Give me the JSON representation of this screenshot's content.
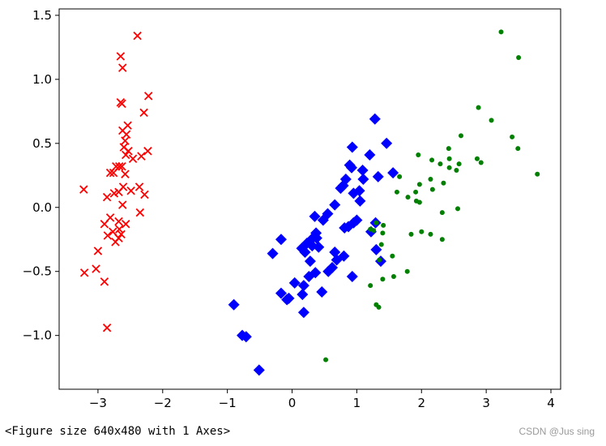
{
  "figure_caption": "<Figure size 640x480 with 1 Axes>",
  "watermark": "CSDN @Jus sing",
  "chart_data": {
    "type": "scatter",
    "xlim": [
      -3.6,
      4.15
    ],
    "ylim": [
      -1.42,
      1.55
    ],
    "x_ticks": [
      -3,
      -2,
      -1,
      0,
      1,
      2,
      3,
      4
    ],
    "x_tick_labels": [
      "−3",
      "−2",
      "−1",
      "0",
      "1",
      "2",
      "3",
      "4"
    ],
    "y_ticks": [
      -1.0,
      -0.5,
      0.0,
      0.5,
      1.0,
      1.5
    ],
    "y_tick_labels": [
      "−1.0",
      "−0.5",
      "0.0",
      "0.5",
      "1.0",
      "1.5"
    ],
    "grid": false,
    "series": [
      {
        "marker": "x",
        "color": "#ff0000",
        "points": [
          [
            -2.39,
            1.34
          ],
          [
            -2.65,
            1.18
          ],
          [
            -2.62,
            1.09
          ],
          [
            -2.65,
            0.82
          ],
          [
            -2.63,
            0.81
          ],
          [
            -2.22,
            0.87
          ],
          [
            -2.29,
            0.74
          ],
          [
            -2.54,
            0.64
          ],
          [
            -2.62,
            0.6
          ],
          [
            -2.56,
            0.57
          ],
          [
            -2.58,
            0.52
          ],
          [
            -2.6,
            0.47
          ],
          [
            -2.57,
            0.41
          ],
          [
            -2.53,
            0.44
          ],
          [
            -2.23,
            0.44
          ],
          [
            -2.33,
            0.4
          ],
          [
            -2.46,
            0.38
          ],
          [
            -2.67,
            0.32
          ],
          [
            -2.63,
            0.32
          ],
          [
            -2.72,
            0.32
          ],
          [
            -2.76,
            0.27
          ],
          [
            -2.81,
            0.27
          ],
          [
            -2.58,
            0.26
          ],
          [
            -2.61,
            0.16
          ],
          [
            -2.36,
            0.16
          ],
          [
            -2.75,
            0.11
          ],
          [
            -2.68,
            0.12
          ],
          [
            -2.49,
            0.13
          ],
          [
            -2.28,
            0.1
          ],
          [
            -2.86,
            0.08
          ],
          [
            -3.22,
            0.14
          ],
          [
            -2.62,
            0.02
          ],
          [
            -2.35,
            -0.04
          ],
          [
            -2.81,
            -0.08
          ],
          [
            -2.68,
            -0.11
          ],
          [
            -2.9,
            -0.13
          ],
          [
            -2.57,
            -0.13
          ],
          [
            -2.67,
            -0.17
          ],
          [
            -2.77,
            -0.19
          ],
          [
            -2.64,
            -0.21
          ],
          [
            -2.68,
            -0.24
          ],
          [
            -2.85,
            -0.22
          ],
          [
            -2.73,
            -0.27
          ],
          [
            -3.0,
            -0.34
          ],
          [
            -3.21,
            -0.51
          ],
          [
            -3.03,
            -0.48
          ],
          [
            -2.9,
            -0.58
          ],
          [
            -2.86,
            -0.94
          ]
        ]
      },
      {
        "marker": "D",
        "color": "#0000ff",
        "points": [
          [
            1.28,
            0.69
          ],
          [
            1.46,
            0.5
          ],
          [
            0.93,
            0.47
          ],
          [
            1.2,
            0.41
          ],
          [
            0.89,
            0.33
          ],
          [
            0.92,
            0.31
          ],
          [
            1.09,
            0.29
          ],
          [
            1.56,
            0.27
          ],
          [
            1.33,
            0.24
          ],
          [
            1.1,
            0.22
          ],
          [
            0.83,
            0.22
          ],
          [
            0.79,
            0.17
          ],
          [
            0.75,
            0.15
          ],
          [
            1.04,
            0.13
          ],
          [
            0.95,
            0.11
          ],
          [
            1.05,
            0.05
          ],
          [
            0.66,
            0.02
          ],
          [
            0.55,
            -0.05
          ],
          [
            0.35,
            -0.07
          ],
          [
            0.48,
            -0.1
          ],
          [
            1.0,
            -0.1
          ],
          [
            0.95,
            -0.12
          ],
          [
            0.87,
            -0.15
          ],
          [
            0.81,
            -0.16
          ],
          [
            1.29,
            -0.12
          ],
          [
            1.22,
            -0.19
          ],
          [
            0.37,
            -0.2
          ],
          [
            0.38,
            -0.24
          ],
          [
            0.3,
            -0.25
          ],
          [
            -0.17,
            -0.25
          ],
          [
            0.23,
            -0.28
          ],
          [
            0.31,
            -0.3
          ],
          [
            0.15,
            -0.32
          ],
          [
            0.41,
            -0.31
          ],
          [
            0.2,
            -0.35
          ],
          [
            1.3,
            -0.33
          ],
          [
            0.66,
            -0.35
          ],
          [
            0.8,
            -0.38
          ],
          [
            -0.3,
            -0.36
          ],
          [
            0.28,
            -0.42
          ],
          [
            0.69,
            -0.41
          ],
          [
            0.62,
            -0.47
          ],
          [
            1.37,
            -0.42
          ],
          [
            0.56,
            -0.5
          ],
          [
            0.26,
            -0.54
          ],
          [
            0.36,
            -0.51
          ],
          [
            0.93,
            -0.54
          ],
          [
            0.04,
            -0.59
          ],
          [
            0.18,
            -0.61
          ],
          [
            0.46,
            -0.66
          ],
          [
            -0.17,
            -0.67
          ],
          [
            -0.05,
            -0.71
          ],
          [
            -0.08,
            -0.72
          ],
          [
            0.16,
            -0.68
          ],
          [
            -0.9,
            -0.76
          ],
          [
            0.18,
            -0.82
          ],
          [
            -0.77,
            -1.0
          ],
          [
            -0.71,
            -1.01
          ],
          [
            -0.51,
            -1.27
          ]
        ]
      },
      {
        "marker": "o",
        "color": "#008000",
        "points": [
          [
            3.23,
            1.37
          ],
          [
            3.5,
            1.17
          ],
          [
            2.61,
            0.56
          ],
          [
            3.4,
            0.55
          ],
          [
            3.49,
            0.46
          ],
          [
            2.88,
            0.78
          ],
          [
            3.08,
            0.68
          ],
          [
            2.42,
            0.46
          ],
          [
            2.43,
            0.38
          ],
          [
            2.16,
            0.37
          ],
          [
            1.95,
            0.41
          ],
          [
            2.86,
            0.38
          ],
          [
            2.92,
            0.35
          ],
          [
            2.29,
            0.34
          ],
          [
            2.58,
            0.34
          ],
          [
            2.43,
            0.31
          ],
          [
            2.54,
            0.29
          ],
          [
            3.79,
            0.26
          ],
          [
            1.66,
            0.24
          ],
          [
            2.14,
            0.22
          ],
          [
            2.34,
            0.19
          ],
          [
            1.97,
            0.18
          ],
          [
            2.17,
            0.14
          ],
          [
            1.91,
            0.12
          ],
          [
            1.79,
            0.08
          ],
          [
            1.92,
            0.05
          ],
          [
            1.97,
            0.04
          ],
          [
            1.62,
            0.12
          ],
          [
            2.32,
            -0.04
          ],
          [
            2.56,
            -0.01
          ],
          [
            1.3,
            -0.12
          ],
          [
            1.41,
            -0.14
          ],
          [
            1.26,
            -0.18
          ],
          [
            1.21,
            -0.17
          ],
          [
            1.4,
            -0.2
          ],
          [
            1.84,
            -0.21
          ],
          [
            2.0,
            -0.19
          ],
          [
            2.14,
            -0.21
          ],
          [
            2.32,
            -0.25
          ],
          [
            1.38,
            -0.29
          ],
          [
            1.55,
            -0.38
          ],
          [
            1.35,
            -0.41
          ],
          [
            1.78,
            -0.5
          ],
          [
            1.57,
            -0.54
          ],
          [
            1.21,
            -0.61
          ],
          [
            1.4,
            -0.56
          ],
          [
            1.3,
            -0.76
          ],
          [
            1.34,
            -0.78
          ],
          [
            0.52,
            -1.19
          ]
        ]
      }
    ]
  }
}
